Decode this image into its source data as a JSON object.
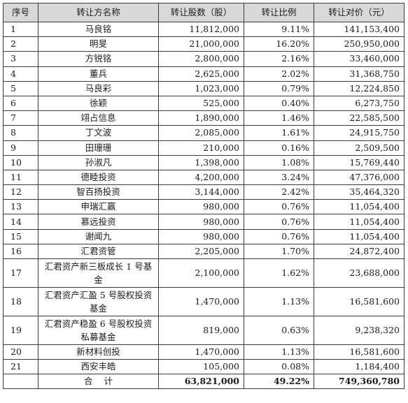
{
  "headers": [
    "序号",
    "转让方名称",
    "转让股数（股）",
    "转让比例",
    "转让对价（元）"
  ],
  "rows": [
    {
      "no": "1",
      "name": "马良铭",
      "shares": "11,812,000",
      "ratio": "9.11%",
      "price": "141,153,400"
    },
    {
      "no": "2",
      "name": "明旻",
      "shares": "21,000,000",
      "ratio": "16.20%",
      "price": "250,950,000"
    },
    {
      "no": "3",
      "name": "方锐铭",
      "shares": "2,800,000",
      "ratio": "2.16%",
      "price": "33,460,000"
    },
    {
      "no": "4",
      "name": "董兵",
      "shares": "2,625,000",
      "ratio": "2.02%",
      "price": "31,368,750"
    },
    {
      "no": "5",
      "name": "马良彩",
      "shares": "1,023,000",
      "ratio": "0.79%",
      "price": "12,224,850"
    },
    {
      "no": "6",
      "name": "徐颖",
      "shares": "525,000",
      "ratio": "0.40%",
      "price": "6,273,750"
    },
    {
      "no": "7",
      "name": "翊占信息",
      "shares": "1,890,000",
      "ratio": "1.46%",
      "price": "22,585,500"
    },
    {
      "no": "8",
      "name": "丁文波",
      "shares": "2,085,000",
      "ratio": "1.61%",
      "price": "24,915,750"
    },
    {
      "no": "9",
      "name": "田珊珊",
      "shares": "210,000",
      "ratio": "0.16%",
      "price": "2,509,500"
    },
    {
      "no": "10",
      "name": "孙淑凡",
      "shares": "1,398,000",
      "ratio": "1.08%",
      "price": "15,769,440"
    },
    {
      "no": "11",
      "name": "德睦投资",
      "shares": "4,200,000",
      "ratio": "3.24%",
      "price": "47,376,000"
    },
    {
      "no": "12",
      "name": "智百扬投资",
      "shares": "3,144,000",
      "ratio": "2.42%",
      "price": "35,464,320"
    },
    {
      "no": "13",
      "name": "申瑞汇赢",
      "shares": "980,000",
      "ratio": "0.76%",
      "price": "11,054,400"
    },
    {
      "no": "14",
      "name": "慕远投资",
      "shares": "980,000",
      "ratio": "0.76%",
      "price": "11,054,400"
    },
    {
      "no": "15",
      "name": "谢闻九",
      "shares": "980,000",
      "ratio": "0.76%",
      "price": "11,054,400"
    },
    {
      "no": "16",
      "name": "汇君资管",
      "shares": "2,205,000",
      "ratio": "1.70%",
      "price": "24,872,400"
    },
    {
      "no": "17",
      "name": "汇君资产新三板成长 1 号基金",
      "shares": "2,100,000",
      "ratio": "1.62%",
      "price": "23,688,000"
    },
    {
      "no": "18",
      "name": "汇君资产汇盈 5 号股权投资基金",
      "shares": "1,470,000",
      "ratio": "1.13%",
      "price": "16,581,600"
    },
    {
      "no": "19",
      "name": "汇君资产稳盈 6 号股权投资私募基金",
      "shares": "819,000",
      "ratio": "0.63%",
      "price": "9,238,320"
    },
    {
      "no": "20",
      "name": "新材料创投",
      "shares": "1,470,000",
      "ratio": "1.13%",
      "price": "16,581,600"
    },
    {
      "no": "21",
      "name": "西安丰皓",
      "shares": "105,000",
      "ratio": "0.08%",
      "price": "1,184,400"
    }
  ],
  "total": {
    "label": "合计",
    "shares": "63,821,000",
    "ratio": "49.22%",
    "price": "749,360,780"
  }
}
